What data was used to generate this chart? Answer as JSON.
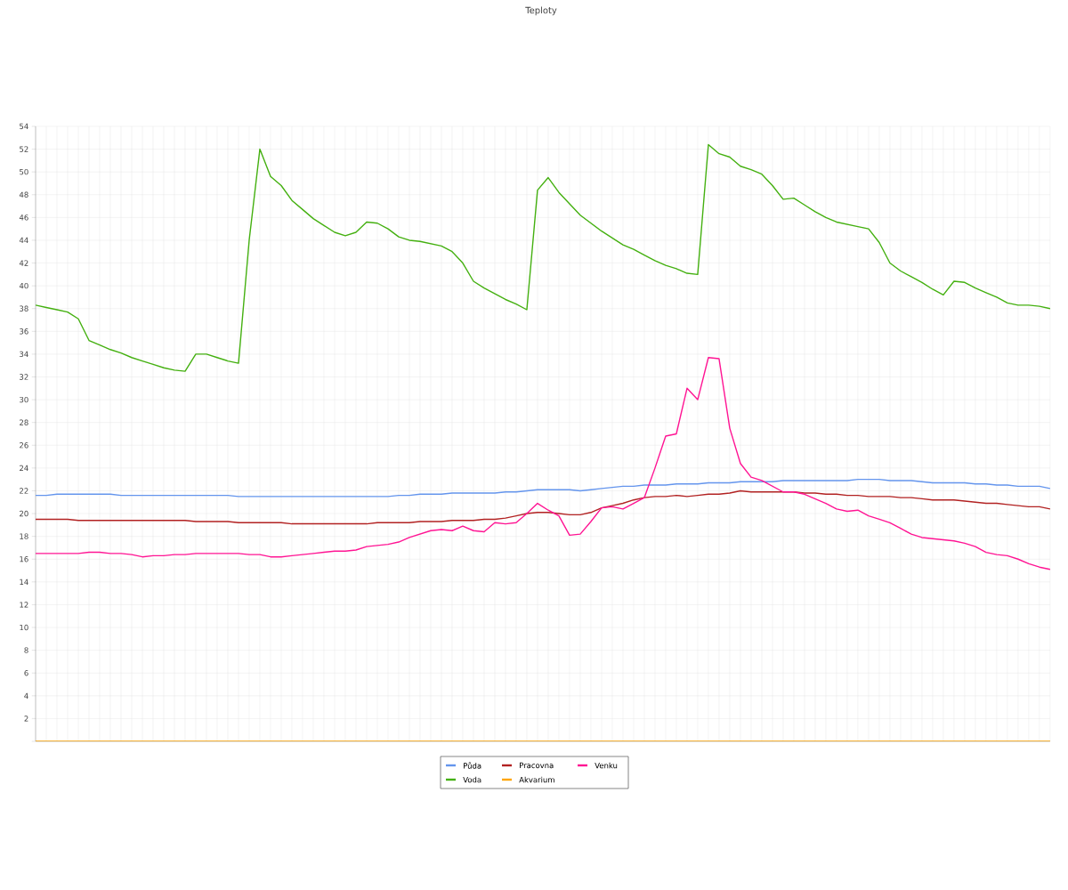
{
  "chart_data": {
    "type": "line",
    "title": "Teploty",
    "categories": [
      null,
      null,
      null,
      null,
      null,
      null,
      null,
      null,
      null,
      null,
      null,
      null,
      null,
      null,
      null,
      null,
      null,
      null,
      null,
      null,
      null,
      null,
      null,
      null,
      null,
      null,
      null,
      null,
      null,
      null,
      null,
      null,
      null,
      null,
      null,
      null,
      null,
      null,
      null,
      null,
      null,
      null,
      null,
      null,
      null,
      null,
      null,
      null,
      null,
      null,
      null,
      null,
      null,
      null,
      null,
      null,
      null,
      null,
      null,
      null,
      null,
      null,
      null,
      null,
      null,
      null,
      null,
      null,
      null,
      null,
      null,
      null,
      null,
      null,
      null,
      null,
      null,
      null,
      null,
      null,
      null,
      null,
      null,
      null,
      null,
      null,
      null,
      null,
      null,
      null,
      null,
      null,
      null,
      null,
      null,
      null
    ],
    "ylim": [
      0,
      54
    ],
    "yticks": [
      {
        "value": 0,
        "label": null
      },
      2,
      4,
      6,
      8,
      10,
      12,
      14,
      16,
      18,
      20,
      22,
      24,
      26,
      28,
      30,
      32,
      34,
      36,
      38,
      40,
      42,
      44,
      46,
      48,
      50,
      52,
      54
    ],
    "tick_labels": "y",
    "grid": true,
    "legend": "bottom",
    "marker": "none",
    "line_style": "solid",
    "series": [
      {
        "name": "Půda",
        "color": "#6495ed",
        "values": [
          21.6,
          21.6,
          21.7,
          21.7,
          21.7,
          21.7,
          21.7,
          21.7,
          21.6,
          21.6,
          21.6,
          21.6,
          21.6,
          21.6,
          21.6,
          21.6,
          21.6,
          21.6,
          21.6,
          21.5,
          21.5,
          21.5,
          21.5,
          21.5,
          21.5,
          21.5,
          21.5,
          21.5,
          21.5,
          21.5,
          21.5,
          21.5,
          21.5,
          21.5,
          21.6,
          21.6,
          21.7,
          21.7,
          21.7,
          21.8,
          21.8,
          21.8,
          21.8,
          21.8,
          21.9,
          21.9,
          22.0,
          22.1,
          22.1,
          22.1,
          22.1,
          22.0,
          22.1,
          22.2,
          22.3,
          22.4,
          22.4,
          22.5,
          22.5,
          22.5,
          22.6,
          22.6,
          22.6,
          22.7,
          22.7,
          22.7,
          22.8,
          22.8,
          22.8,
          22.8,
          22.9,
          22.9,
          22.9,
          22.9,
          22.9,
          22.9,
          22.9,
          23.0,
          23.0,
          23.0,
          22.9,
          22.9,
          22.9,
          22.8,
          22.7,
          22.7,
          22.7,
          22.7,
          22.6,
          22.6,
          22.5,
          22.5,
          22.4,
          22.4,
          22.4,
          22.2
        ]
      },
      {
        "name": "Pracovna",
        "color": "#b22222",
        "values": [
          19.5,
          19.5,
          19.5,
          19.5,
          19.4,
          19.4,
          19.4,
          19.4,
          19.4,
          19.4,
          19.4,
          19.4,
          19.4,
          19.4,
          19.4,
          19.3,
          19.3,
          19.3,
          19.3,
          19.2,
          19.2,
          19.2,
          19.2,
          19.2,
          19.1,
          19.1,
          19.1,
          19.1,
          19.1,
          19.1,
          19.1,
          19.1,
          19.2,
          19.2,
          19.2,
          19.2,
          19.3,
          19.3,
          19.3,
          19.4,
          19.4,
          19.4,
          19.5,
          19.5,
          19.6,
          19.8,
          20.0,
          20.1,
          20.1,
          20.0,
          19.9,
          19.9,
          20.1,
          20.5,
          20.7,
          20.9,
          21.2,
          21.4,
          21.5,
          21.5,
          21.6,
          21.5,
          21.6,
          21.7,
          21.7,
          21.8,
          22.0,
          21.9,
          21.9,
          21.9,
          21.9,
          21.9,
          21.8,
          21.8,
          21.7,
          21.7,
          21.6,
          21.6,
          21.5,
          21.5,
          21.5,
          21.4,
          21.4,
          21.3,
          21.2,
          21.2,
          21.2,
          21.1,
          21.0,
          20.9,
          20.9,
          20.8,
          20.7,
          20.6,
          20.6,
          20.4
        ]
      },
      {
        "name": "Venku",
        "color": "#ff1493",
        "values": [
          16.5,
          16.5,
          16.5,
          16.5,
          16.5,
          16.6,
          16.6,
          16.5,
          16.5,
          16.4,
          16.2,
          16.3,
          16.3,
          16.4,
          16.4,
          16.5,
          16.5,
          16.5,
          16.5,
          16.5,
          16.4,
          16.4,
          16.2,
          16.2,
          16.3,
          16.4,
          16.5,
          16.6,
          16.7,
          16.7,
          16.8,
          17.1,
          17.2,
          17.3,
          17.5,
          17.9,
          18.2,
          18.5,
          18.6,
          18.5,
          18.9,
          18.5,
          18.4,
          19.2,
          19.1,
          19.2,
          20.0,
          20.9,
          20.3,
          19.8,
          18.1,
          18.2,
          19.3,
          20.5,
          20.6,
          20.4,
          20.9,
          21.4,
          24.0,
          26.8,
          27.0,
          31.0,
          30.0,
          33.7,
          33.6,
          27.5,
          24.4,
          23.2,
          22.9,
          22.4,
          21.9,
          21.9,
          21.7,
          21.3,
          20.9,
          20.4,
          20.2,
          20.3,
          19.8,
          19.5,
          19.2,
          18.7,
          18.2,
          17.9,
          17.8,
          17.7,
          17.6,
          17.4,
          17.1,
          16.6,
          16.4,
          16.3,
          16.0,
          15.6,
          15.3,
          15.1
        ]
      },
      {
        "name": "Voda",
        "color": "#44b010",
        "values": [
          38.3,
          38.1,
          37.9,
          37.7,
          37.1,
          35.2,
          34.8,
          34.4,
          34.1,
          33.7,
          33.4,
          33.1,
          32.8,
          32.6,
          32.5,
          34.0,
          34.0,
          33.7,
          33.4,
          33.2,
          44.0,
          52.0,
          49.6,
          48.8,
          47.5,
          46.7,
          45.9,
          45.3,
          44.7,
          44.4,
          44.7,
          45.6,
          45.5,
          45.0,
          44.3,
          44.0,
          43.9,
          43.7,
          43.5,
          43.0,
          42.0,
          40.4,
          39.8,
          39.3,
          38.8,
          38.4,
          37.9,
          48.4,
          49.5,
          48.2,
          47.2,
          46.2,
          45.5,
          44.8,
          44.2,
          43.6,
          43.2,
          42.7,
          42.2,
          41.8,
          41.5,
          41.1,
          41.0,
          52.4,
          51.6,
          51.3,
          50.5,
          50.2,
          49.8,
          48.8,
          47.6,
          47.7,
          47.1,
          46.5,
          46.0,
          45.6,
          45.4,
          45.2,
          45.0,
          43.8,
          42.0,
          41.3,
          40.8,
          40.3,
          39.7,
          39.2,
          40.4,
          40.3,
          39.8,
          39.4,
          39.0,
          38.5,
          38.3,
          38.3,
          38.2,
          38.0
        ]
      },
      {
        "name": "Akvarium",
        "color": "#ffa500",
        "values": [
          0,
          0,
          0,
          0,
          0,
          0,
          0,
          0,
          0,
          0,
          0,
          0,
          0,
          0,
          0,
          0,
          0,
          0,
          0,
          0,
          0,
          0,
          0,
          0,
          0,
          0,
          0,
          0,
          0,
          0,
          0,
          0,
          0,
          0,
          0,
          0,
          0,
          0,
          0,
          0,
          0,
          0,
          0,
          0,
          0,
          0,
          0,
          0,
          0,
          0,
          0,
          0,
          0,
          0,
          0,
          0,
          0,
          0,
          0,
          0,
          0,
          0,
          0,
          0,
          0,
          0,
          0,
          0,
          0,
          0,
          0,
          0,
          0,
          0,
          0,
          0,
          0,
          0,
          0,
          0,
          0,
          0,
          0,
          0,
          0,
          0,
          0,
          0,
          0,
          0,
          0,
          0,
          0,
          0,
          0,
          0
        ]
      }
    ]
  }
}
